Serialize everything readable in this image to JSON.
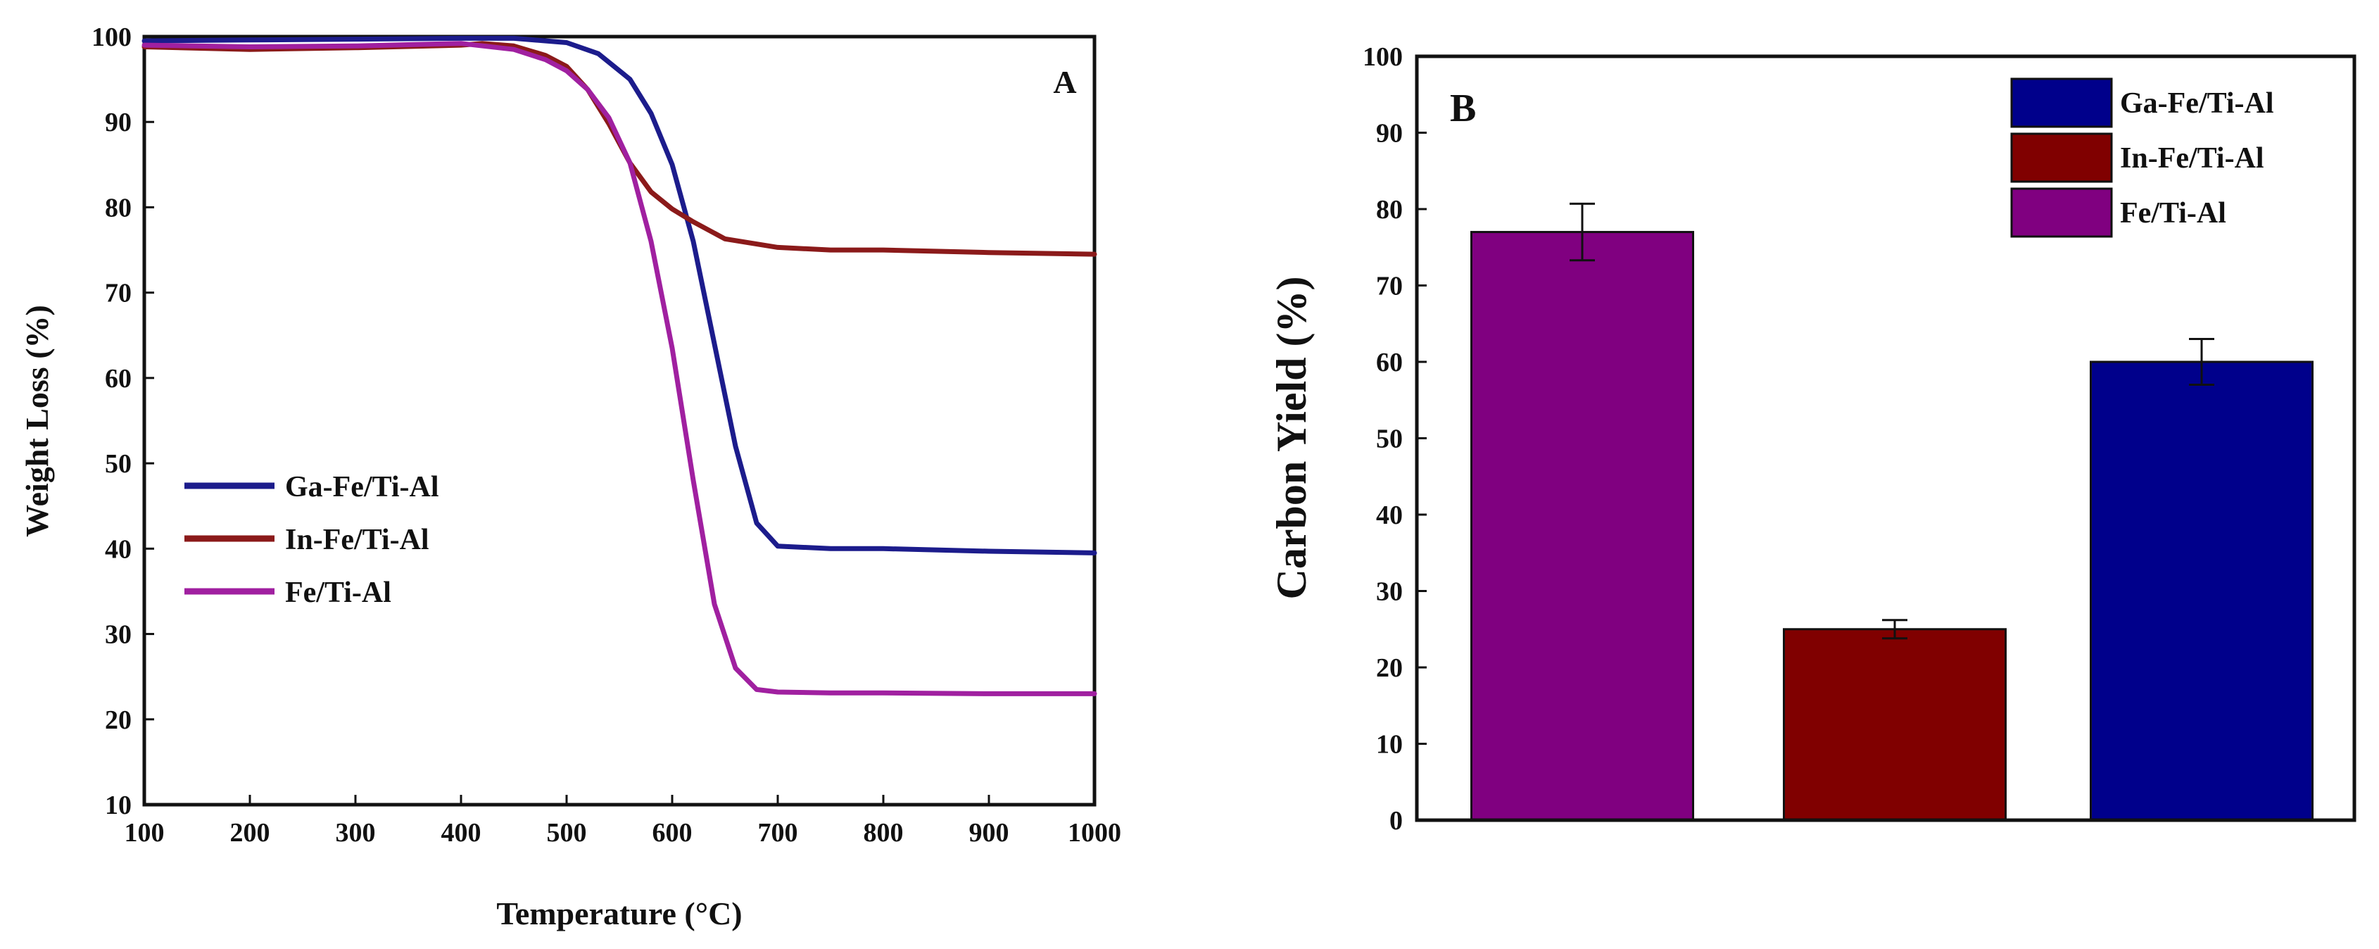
{
  "chart_data": [
    {
      "type": "line",
      "panel_label": "A",
      "xlabel": "Temperature (°C)",
      "ylabel": "Weight Loss (%)",
      "xlim": [
        100,
        1000
      ],
      "ylim": [
        10,
        100
      ],
      "xticks": [
        100,
        200,
        300,
        400,
        500,
        600,
        700,
        800,
        900,
        1000
      ],
      "yticks": [
        10,
        20,
        30,
        40,
        50,
        60,
        70,
        80,
        90,
        100
      ],
      "legend_position": "center-left",
      "series": [
        {
          "name": "Ga-Fe/Ti-Al",
          "color": "#1c1c8c",
          "x": [
            100,
            200,
            300,
            400,
            450,
            500,
            530,
            560,
            580,
            600,
            620,
            640,
            660,
            680,
            700,
            750,
            800,
            900,
            1000
          ],
          "y": [
            99.5,
            99.6,
            99.7,
            99.8,
            99.8,
            99.3,
            98.0,
            95.0,
            91.0,
            85.0,
            76.0,
            64.0,
            52.0,
            43.0,
            40.3,
            40.0,
            40.0,
            39.7,
            39.5
          ]
        },
        {
          "name": "In-Fe/Ti-Al",
          "color": "#8b1a1a",
          "x": [
            100,
            200,
            300,
            400,
            420,
            450,
            480,
            500,
            520,
            540,
            560,
            580,
            600,
            620,
            650,
            700,
            750,
            800,
            900,
            1000
          ],
          "y": [
            98.8,
            98.5,
            98.7,
            99.0,
            99.2,
            98.9,
            97.8,
            96.5,
            93.8,
            89.8,
            85.2,
            81.8,
            79.8,
            78.3,
            76.3,
            75.3,
            75.0,
            75.0,
            74.7,
            74.5
          ]
        },
        {
          "name": "Fe/Ti-Al",
          "color": "#a020a0",
          "x": [
            100,
            200,
            300,
            400,
            450,
            480,
            500,
            520,
            540,
            560,
            580,
            600,
            620,
            640,
            660,
            680,
            700,
            750,
            800,
            900,
            1000
          ],
          "y": [
            99.0,
            98.8,
            98.9,
            99.2,
            98.5,
            97.3,
            96.0,
            93.8,
            90.5,
            85.2,
            76.0,
            63.5,
            48.0,
            33.5,
            26.0,
            23.5,
            23.2,
            23.1,
            23.1,
            23.0,
            23.0
          ]
        }
      ]
    },
    {
      "type": "bar",
      "panel_label": "B",
      "xlabel": "",
      "ylabel": "Carbon Yield (%)",
      "ylim": [
        0,
        100
      ],
      "yticks": [
        0,
        10,
        20,
        30,
        40,
        50,
        60,
        70,
        80,
        90,
        100
      ],
      "legend_position": "top-right",
      "categories": [
        "Fe/Ti-Al",
        "In-Fe/Ti-Al",
        "Ga-Fe/Ti-Al"
      ],
      "values": [
        77,
        25,
        60
      ],
      "errors": [
        3.7,
        1.2,
        3.0
      ],
      "colors": [
        "#800080",
        "#800000",
        "#00008b"
      ],
      "legend": [
        {
          "name": "Ga-Fe/Ti-Al",
          "color": "#00008b"
        },
        {
          "name": "In-Fe/Ti-Al",
          "color": "#800000"
        },
        {
          "name": "Fe/Ti-Al",
          "color": "#800080"
        }
      ]
    }
  ]
}
